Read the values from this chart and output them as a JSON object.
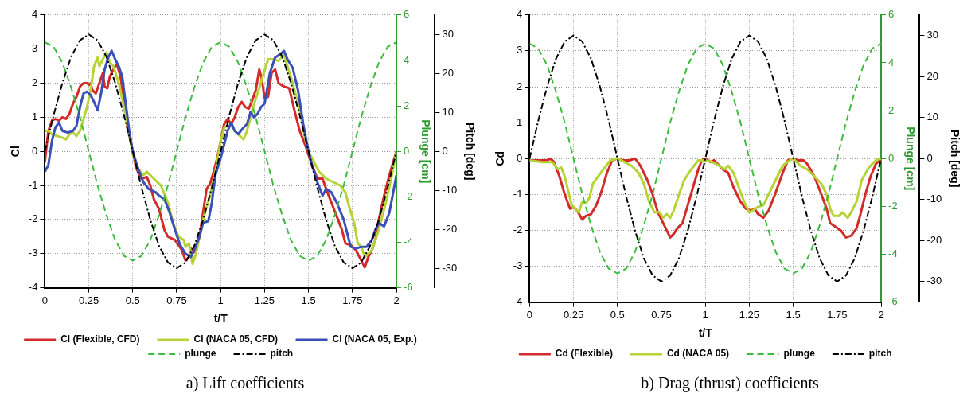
{
  "chart_data": [
    {
      "type": "line",
      "title": "a)    Lift coefficients",
      "xlabel": "t/T",
      "ylabel": "Cl",
      "y2label": "Plunge [cm]",
      "y3label": "Pitch [deg]",
      "xlim": [
        0,
        2
      ],
      "xticks": [
        0,
        0.25,
        0.5,
        0.75,
        1,
        1.25,
        1.5,
        1.75,
        2
      ],
      "ylim": [
        -4,
        4
      ],
      "yticks": [
        -4,
        -3,
        -2,
        -1,
        0,
        1,
        2,
        3,
        4
      ],
      "y2lim": [
        -6,
        6
      ],
      "y2ticks": [
        -6,
        -4,
        -2,
        0,
        2,
        4,
        6
      ],
      "y3lim": [
        -35,
        35
      ],
      "y3ticks": [
        -30,
        -20,
        -10,
        0,
        10,
        20,
        30
      ],
      "grid": true,
      "legend": "bottom",
      "marker": "none",
      "series": [
        {
          "name": "Cl (Flexible, CFD)",
          "color": "#d42a2a",
          "line_style": "solid",
          "x": [
            0,
            0.02,
            0.04,
            0.06,
            0.08,
            0.1,
            0.12,
            0.14,
            0.16,
            0.18,
            0.2,
            0.22,
            0.24,
            0.25,
            0.26,
            0.27,
            0.29,
            0.31,
            0.33,
            0.34,
            0.355,
            0.37,
            0.4,
            0.41,
            0.43,
            0.45,
            0.47,
            0.5,
            0.52,
            0.55,
            0.58,
            0.6,
            0.62,
            0.65,
            0.68,
            0.7,
            0.74,
            0.78,
            0.8,
            0.82,
            0.83,
            0.85,
            0.88,
            0.9,
            0.92,
            0.94,
            0.96,
            0.98,
            1,
            1.02,
            1.04,
            1.06,
            1.08,
            1.1,
            1.12,
            1.14,
            1.16,
            1.18,
            1.2,
            1.22,
            1.235,
            1.25,
            1.27,
            1.29,
            1.31,
            1.33,
            1.36,
            1.39,
            1.42,
            1.45,
            1.48,
            1.5,
            1.52,
            1.55,
            1.58,
            1.6,
            1.63,
            1.66,
            1.69,
            1.71,
            1.74,
            1.77,
            1.8,
            1.82,
            1.84,
            1.86,
            1.88,
            1.9,
            1.93,
            1.96,
            2
          ],
          "values": [
            -0.3,
            0.6,
            0.9,
            0.95,
            0.9,
            1.0,
            0.95,
            1.1,
            1.4,
            1.6,
            1.9,
            2.0,
            2.0,
            1.95,
            2.0,
            1.8,
            1.7,
            2.0,
            2.3,
            1.9,
            1.85,
            2.2,
            2.5,
            2.55,
            2.2,
            1.5,
            0.7,
            0.0,
            -0.5,
            -0.8,
            -0.75,
            -1.0,
            -1.4,
            -1.7,
            -2.3,
            -2.5,
            -2.6,
            -2.9,
            -3.2,
            -3.1,
            -2.85,
            -2.95,
            -2.5,
            -1.8,
            -1.1,
            -0.95,
            -0.6,
            -0.2,
            0.3,
            0.8,
            0.95,
            0.8,
            1.0,
            1.3,
            1.45,
            1.3,
            1.25,
            1.5,
            1.8,
            2.4,
            2.1,
            1.55,
            1.6,
            2.3,
            2.4,
            2.0,
            1.9,
            1.85,
            1.2,
            0.6,
            0.2,
            -0.1,
            -0.4,
            -0.8,
            -0.8,
            -1.1,
            -1.5,
            -1.9,
            -2.3,
            -2.7,
            -2.75,
            -2.9,
            -3.2,
            -3.4,
            -3.1,
            -2.9,
            -2.6,
            -2.0,
            -1.3,
            -0.7,
            0.0
          ]
        },
        {
          "name": "Cl (NACA 05, CFD)",
          "color": "#b5d334",
          "line_style": "solid",
          "x": [
            0,
            0.02,
            0.04,
            0.07,
            0.1,
            0.12,
            0.14,
            0.16,
            0.18,
            0.2,
            0.22,
            0.24,
            0.26,
            0.28,
            0.3,
            0.31,
            0.33,
            0.35,
            0.37,
            0.39,
            0.42,
            0.45,
            0.48,
            0.5,
            0.53,
            0.56,
            0.58,
            0.62,
            0.66,
            0.7,
            0.73,
            0.76,
            0.79,
            0.8,
            0.82,
            0.84,
            0.86,
            0.88,
            0.91,
            0.94,
            0.97,
            1,
            1.02,
            1.04,
            1.06,
            1.08,
            1.1,
            1.13,
            1.15,
            1.18,
            1.21,
            1.24,
            1.27,
            1.3,
            1.33,
            1.36,
            1.38,
            1.41,
            1.45,
            1.48,
            1.5,
            1.53,
            1.56,
            1.6,
            1.64,
            1.68,
            1.71,
            1.73,
            1.76,
            1.78,
            1.8,
            1.82,
            1.84,
            1.86,
            1.9,
            1.94,
            1.97,
            2
          ],
          "values": [
            0.6,
            0.6,
            0.5,
            0.45,
            0.4,
            0.35,
            0.5,
            0.55,
            0.45,
            0.6,
            0.95,
            1.3,
            1.8,
            2.5,
            2.75,
            2.5,
            2.7,
            2.9,
            2.6,
            2.5,
            2.0,
            1.3,
            0.5,
            -0.1,
            -0.5,
            -0.7,
            -0.6,
            -0.8,
            -1.0,
            -1.5,
            -2.1,
            -2.5,
            -2.6,
            -2.8,
            -2.7,
            -3.3,
            -3.0,
            -2.5,
            -1.8,
            -1.3,
            -0.6,
            0.3,
            0.7,
            0.75,
            0.75,
            0.6,
            0.5,
            0.35,
            0.6,
            1.2,
            1.7,
            2.2,
            2.7,
            2.7,
            2.65,
            2.85,
            2.5,
            2.0,
            1.2,
            0.4,
            0.0,
            -0.3,
            -0.6,
            -0.8,
            -0.9,
            -1.0,
            -1.2,
            -1.6,
            -2.1,
            -2.7,
            -2.8,
            -3.1,
            -3.0,
            -2.9,
            -2.3,
            -1.5,
            -0.8,
            0.0
          ]
        },
        {
          "name": "Cl (NACA 05, Exp.)",
          "color": "#3b4fb8",
          "line_style": "solid",
          "x": [
            0,
            0.02,
            0.04,
            0.06,
            0.08,
            0.1,
            0.13,
            0.16,
            0.18,
            0.2,
            0.22,
            0.24,
            0.26,
            0.28,
            0.3,
            0.32,
            0.34,
            0.36,
            0.38,
            0.4,
            0.42,
            0.44,
            0.46,
            0.48,
            0.5,
            0.53,
            0.56,
            0.59,
            0.61,
            0.63,
            0.65,
            0.68,
            0.71,
            0.74,
            0.77,
            0.8,
            0.83,
            0.85,
            0.88,
            0.9,
            0.93,
            0.95,
            0.97,
            1,
            1.02,
            1.04,
            1.06,
            1.08,
            1.1,
            1.13,
            1.15,
            1.17,
            1.19,
            1.21,
            1.23,
            1.25,
            1.28,
            1.31,
            1.34,
            1.36,
            1.38,
            1.41,
            1.44,
            1.47,
            1.5,
            1.52,
            1.55,
            1.58,
            1.6,
            1.63,
            1.66,
            1.7,
            1.74,
            1.77,
            1.8,
            1.83,
            1.86,
            1.88,
            1.9,
            1.93,
            1.96,
            2
          ],
          "values": [
            -0.6,
            -0.4,
            0.3,
            0.7,
            0.85,
            0.6,
            0.55,
            0.6,
            0.75,
            1.3,
            1.7,
            1.75,
            1.65,
            1.45,
            1.2,
            1.7,
            2.4,
            2.75,
            2.95,
            2.7,
            2.5,
            2.2,
            1.4,
            0.6,
            0.0,
            -0.5,
            -0.9,
            -1.1,
            -1.15,
            -1.2,
            -1.3,
            -1.4,
            -1.8,
            -2.3,
            -2.75,
            -3.0,
            -3.1,
            -2.9,
            -2.5,
            -2.1,
            -2.05,
            -1.5,
            -0.7,
            -0.2,
            0.2,
            0.6,
            0.85,
            0.6,
            0.5,
            0.7,
            0.8,
            1.15,
            1.0,
            1.1,
            1.3,
            1.4,
            2.3,
            2.75,
            2.85,
            2.95,
            2.7,
            2.45,
            1.8,
            0.8,
            0.0,
            -0.4,
            -0.9,
            -1.3,
            -1.1,
            -1.2,
            -1.5,
            -2.0,
            -2.8,
            -2.85,
            -2.8,
            -2.8,
            -2.6,
            -2.3,
            -2.1,
            -2.2,
            -1.8,
            -0.7
          ]
        },
        {
          "name": "plunge",
          "color": "#3dbb3d",
          "line_style": "dashed",
          "axis": "y2",
          "x": [
            0,
            0.05,
            0.1,
            0.15,
            0.2,
            0.25,
            0.3,
            0.35,
            0.4,
            0.45,
            0.5,
            0.55,
            0.6,
            0.65,
            0.7,
            0.75,
            0.8,
            0.85,
            0.9,
            0.95,
            1,
            1.05,
            1.1,
            1.15,
            1.2,
            1.25,
            1.3,
            1.35,
            1.4,
            1.45,
            1.5,
            1.55,
            1.6,
            1.65,
            1.7,
            1.75,
            1.8,
            1.85,
            1.9,
            1.95,
            2
          ],
          "values": [
            4.8,
            4.6,
            3.9,
            2.8,
            1.5,
            0,
            -1.5,
            -2.8,
            -3.9,
            -4.6,
            -4.8,
            -4.6,
            -3.9,
            -2.8,
            -1.5,
            0,
            1.5,
            2.8,
            3.9,
            4.6,
            4.8,
            4.6,
            3.9,
            2.8,
            1.5,
            0,
            -1.5,
            -2.8,
            -3.9,
            -4.6,
            -4.8,
            -4.6,
            -3.9,
            -2.8,
            -1.5,
            0,
            1.5,
            2.8,
            3.9,
            4.6,
            4.8
          ]
        },
        {
          "name": "pitch",
          "color": "#000000",
          "line_style": "dashdot",
          "axis": "y3",
          "x": [
            0,
            0.05,
            0.1,
            0.15,
            0.2,
            0.25,
            0.3,
            0.35,
            0.4,
            0.45,
            0.5,
            0.55,
            0.6,
            0.65,
            0.7,
            0.75,
            0.8,
            0.85,
            0.9,
            0.95,
            1,
            1.05,
            1.1,
            1.15,
            1.2,
            1.25,
            1.3,
            1.35,
            1.4,
            1.45,
            1.5,
            1.55,
            1.6,
            1.65,
            1.7,
            1.75,
            1.8,
            1.85,
            1.9,
            1.95,
            2
          ],
          "values": [
            0,
            9.3,
            17.6,
            24.3,
            28.5,
            30,
            28.5,
            24.3,
            17.6,
            9.3,
            0,
            -9.3,
            -17.6,
            -24.3,
            -28.5,
            -30,
            -28.5,
            -24.3,
            -17.6,
            -9.3,
            0,
            9.3,
            17.6,
            24.3,
            28.5,
            30,
            28.5,
            24.3,
            17.6,
            9.3,
            0,
            -9.3,
            -17.6,
            -24.3,
            -28.5,
            -30,
            -28.5,
            -24.3,
            -17.6,
            -9.3,
            0
          ]
        }
      ]
    },
    {
      "type": "line",
      "title": "b)    Drag (thrust) coefficients",
      "xlabel": "t/T",
      "ylabel": "Cd",
      "y2label": "Plunge [cm]",
      "y3label": "Pitch [deg]",
      "xlim": [
        0,
        2
      ],
      "xticks": [
        0,
        0.25,
        0.5,
        0.75,
        1,
        1.25,
        1.5,
        1.75,
        2
      ],
      "ylim": [
        -4,
        4
      ],
      "yticks": [
        -4,
        -3,
        -2,
        -1,
        0,
        1,
        2,
        3,
        4
      ],
      "y2lim": [
        -6,
        6
      ],
      "y2ticks": [
        -6,
        -4,
        -2,
        0,
        2,
        4,
        6
      ],
      "y3lim": [
        -35,
        35
      ],
      "y3ticks": [
        -30,
        -20,
        -10,
        0,
        10,
        20,
        30
      ],
      "grid": true,
      "legend": "bottom",
      "marker": "none",
      "series": [
        {
          "name": "Cd (Flexible)",
          "color": "#d42a2a",
          "line_style": "solid",
          "x": [
            0,
            0.1,
            0.12,
            0.14,
            0.17,
            0.2,
            0.23,
            0.25,
            0.27,
            0.3,
            0.32,
            0.35,
            0.38,
            0.41,
            0.44,
            0.47,
            0.5,
            0.53,
            0.57,
            0.6,
            0.63,
            0.67,
            0.7,
            0.73,
            0.76,
            0.78,
            0.8,
            0.82,
            0.84,
            0.87,
            0.9,
            0.93,
            0.96,
            0.98,
            1,
            1.03,
            1.05,
            1.07,
            1.1,
            1.13,
            1.16,
            1.2,
            1.23,
            1.26,
            1.28,
            1.3,
            1.33,
            1.36,
            1.4,
            1.44,
            1.47,
            1.5,
            1.53,
            1.56,
            1.58,
            1.62,
            1.66,
            1.69,
            1.71,
            1.74,
            1.77,
            1.8,
            1.83,
            1.86,
            1.88,
            1.91,
            1.94,
            1.97,
            2
          ],
          "values": [
            -0.05,
            -0.05,
            0.0,
            -0.1,
            -0.5,
            -1.0,
            -1.4,
            -1.35,
            -1.45,
            -1.7,
            -1.6,
            -1.55,
            -1.3,
            -0.9,
            -0.4,
            -0.05,
            0.0,
            -0.05,
            -0.05,
            0.0,
            -0.2,
            -0.6,
            -1.0,
            -1.5,
            -1.8,
            -2.0,
            -2.2,
            -2.1,
            -1.95,
            -1.8,
            -1.3,
            -0.8,
            -0.3,
            -0.05,
            0.0,
            -0.1,
            -0.05,
            -0.15,
            -0.3,
            -0.4,
            -0.8,
            -1.2,
            -1.4,
            -1.45,
            -1.4,
            -1.55,
            -1.65,
            -1.45,
            -0.95,
            -0.4,
            -0.05,
            0.0,
            -0.05,
            -0.05,
            -0.15,
            -0.5,
            -1.0,
            -1.4,
            -1.8,
            -1.9,
            -2.0,
            -2.2,
            -2.15,
            -1.95,
            -1.6,
            -1.0,
            -0.5,
            -0.15,
            0.0
          ]
        },
        {
          "name": "Cd (NACA 05)",
          "color": "#b5d334",
          "line_style": "solid",
          "x": [
            0,
            0.07,
            0.13,
            0.16,
            0.18,
            0.2,
            0.22,
            0.24,
            0.26,
            0.28,
            0.3,
            0.32,
            0.34,
            0.36,
            0.39,
            0.42,
            0.46,
            0.5,
            0.54,
            0.58,
            0.62,
            0.65,
            0.68,
            0.71,
            0.74,
            0.76,
            0.78,
            0.8,
            0.82,
            0.85,
            0.88,
            0.92,
            0.96,
            1,
            1.04,
            1.08,
            1.11,
            1.13,
            1.16,
            1.19,
            1.22,
            1.25,
            1.27,
            1.3,
            1.33,
            1.36,
            1.4,
            1.44,
            1.48,
            1.5,
            1.54,
            1.58,
            1.62,
            1.66,
            1.69,
            1.71,
            1.73,
            1.76,
            1.78,
            1.81,
            1.83,
            1.86,
            1.89,
            1.93,
            1.97,
            2
          ],
          "values": [
            -0.05,
            -0.1,
            -0.1,
            -0.3,
            -0.25,
            -0.5,
            -0.9,
            -1.3,
            -1.4,
            -1.5,
            -1.2,
            -1.25,
            -1.1,
            -0.7,
            -0.5,
            -0.3,
            -0.05,
            0.0,
            -0.1,
            -0.2,
            -0.4,
            -0.7,
            -1.2,
            -1.5,
            -1.5,
            -1.65,
            -1.55,
            -1.65,
            -1.45,
            -1.0,
            -0.6,
            -0.3,
            -0.05,
            -0.05,
            -0.1,
            -0.2,
            -0.3,
            -0.2,
            -0.4,
            -0.8,
            -1.2,
            -1.5,
            -1.45,
            -1.35,
            -1.3,
            -1.0,
            -0.6,
            -0.2,
            -0.05,
            0.0,
            -0.2,
            -0.3,
            -0.5,
            -0.7,
            -1.0,
            -1.4,
            -1.6,
            -1.6,
            -1.5,
            -1.65,
            -1.5,
            -1.2,
            -0.6,
            -0.25,
            -0.05,
            0.0
          ]
        },
        {
          "name": "plunge",
          "color": "#3dbb3d",
          "line_style": "dashed",
          "axis": "y2",
          "x": [
            0,
            0.05,
            0.1,
            0.15,
            0.2,
            0.25,
            0.3,
            0.35,
            0.4,
            0.45,
            0.5,
            0.55,
            0.6,
            0.65,
            0.7,
            0.75,
            0.8,
            0.85,
            0.9,
            0.95,
            1,
            1.05,
            1.1,
            1.15,
            1.2,
            1.25,
            1.3,
            1.35,
            1.4,
            1.45,
            1.5,
            1.55,
            1.6,
            1.65,
            1.7,
            1.75,
            1.8,
            1.85,
            1.9,
            1.95,
            2
          ],
          "values": [
            4.8,
            4.6,
            3.9,
            2.8,
            1.5,
            0,
            -1.5,
            -2.8,
            -3.9,
            -4.6,
            -4.8,
            -4.6,
            -3.9,
            -2.8,
            -1.5,
            0,
            1.5,
            2.8,
            3.9,
            4.6,
            4.8,
            4.6,
            3.9,
            2.8,
            1.5,
            0,
            -1.5,
            -2.8,
            -3.9,
            -4.6,
            -4.8,
            -4.6,
            -3.9,
            -2.8,
            -1.5,
            0,
            1.5,
            2.8,
            3.9,
            4.6,
            4.8
          ]
        },
        {
          "name": "pitch",
          "color": "#000000",
          "line_style": "dashdot",
          "axis": "y3",
          "x": [
            0,
            0.05,
            0.1,
            0.15,
            0.2,
            0.25,
            0.3,
            0.35,
            0.4,
            0.45,
            0.5,
            0.55,
            0.6,
            0.65,
            0.7,
            0.75,
            0.8,
            0.85,
            0.9,
            0.95,
            1,
            1.05,
            1.1,
            1.15,
            1.2,
            1.25,
            1.3,
            1.35,
            1.4,
            1.45,
            1.5,
            1.55,
            1.6,
            1.65,
            1.7,
            1.75,
            1.8,
            1.85,
            1.9,
            1.95,
            2
          ],
          "values": [
            0,
            9.3,
            17.6,
            24.3,
            28.5,
            30,
            28.5,
            24.3,
            17.6,
            9.3,
            0,
            -9.3,
            -17.6,
            -24.3,
            -28.5,
            -30,
            -28.5,
            -24.3,
            -17.6,
            -9.3,
            0,
            9.3,
            17.6,
            24.3,
            28.5,
            30,
            28.5,
            24.3,
            17.6,
            9.3,
            0,
            -9.3,
            -17.6,
            -24.3,
            -28.5,
            -30,
            -28.5,
            -24.3,
            -17.6,
            -9.3,
            0
          ]
        }
      ]
    }
  ]
}
